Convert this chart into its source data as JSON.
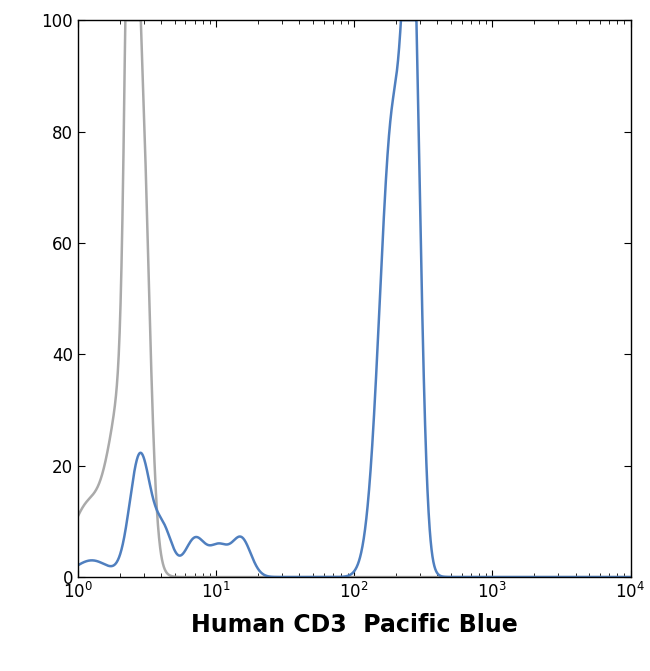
{
  "title": "",
  "xlabel": "Human CD3  Pacific Blue",
  "ylabel": "",
  "xlim_log": [
    0,
    4
  ],
  "ylim": [
    0,
    100
  ],
  "yticks": [
    0,
    20,
    40,
    60,
    80,
    100
  ],
  "gray_color": "#aaaaaa",
  "blue_color": "#4f7fbf",
  "linewidth": 1.8,
  "background_color": "#ffffff",
  "xlabel_fontsize": 17
}
